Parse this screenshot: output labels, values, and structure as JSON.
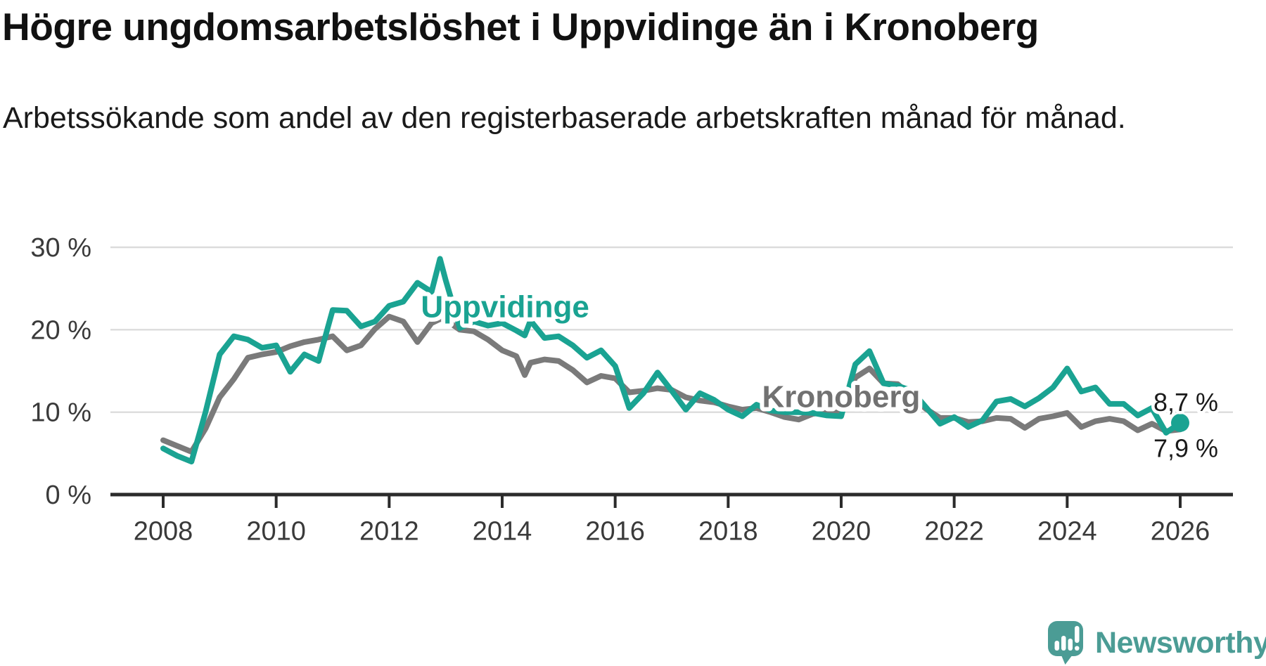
{
  "header": {
    "title": "Högre ungdomsarbetslöshet i Uppvidinge än i Kronoberg",
    "subtitle": "Arbetssökande som andel av den registerbaserade arbetskraften månad för månad."
  },
  "branding": {
    "logo_text": "Newsworthy",
    "logo_color": "#4B9C95"
  },
  "chart_data": {
    "type": "line",
    "title": "Högre ungdomsarbetslöshet i Uppvidinge än i Kronoberg",
    "subtitle": "Arbetssökande som andel av den registerbaserade arbetskraften månad för månad.",
    "xlabel": "",
    "ylabel": "",
    "grid": "horizontal-only",
    "legend_position": "inline-labels",
    "x_axis_range": [
      2007.05,
      2026.95
    ],
    "ylim": [
      0,
      34
    ],
    "x_ticks": [
      2008,
      2010,
      2012,
      2014,
      2016,
      2018,
      2020,
      2022,
      2024,
      2026
    ],
    "x_tick_labels": [
      "2008",
      "2010",
      "2012",
      "2014",
      "2016",
      "2018",
      "2020",
      "2022",
      "2024",
      "2026"
    ],
    "y_tick_values": [
      0,
      10,
      20,
      30
    ],
    "y_tick_labels": [
      "0 %",
      "10 %",
      "20 %",
      "30 %"
    ],
    "gridline_values": [
      10,
      20,
      30
    ],
    "colors": {
      "grid": "#DCDCDC",
      "axis": "#2B2B2B",
      "tick_text": "#3A3A3A",
      "value_label_text": "#1A1A1A"
    },
    "x": [
      2008.0,
      2008.25,
      2008.5,
      2008.75,
      2009.0,
      2009.25,
      2009.5,
      2009.75,
      2010.0,
      2010.25,
      2010.5,
      2010.75,
      2011.0,
      2011.25,
      2011.5,
      2011.75,
      2012.0,
      2012.25,
      2012.5,
      2012.75,
      2012.9,
      2013.0,
      2013.25,
      2013.5,
      2013.75,
      2014.0,
      2014.25,
      2014.4,
      2014.5,
      2014.75,
      2015.0,
      2015.25,
      2015.5,
      2015.75,
      2016.0,
      2016.25,
      2016.5,
      2016.75,
      2017.0,
      2017.25,
      2017.5,
      2017.75,
      2018.0,
      2018.25,
      2018.5,
      2018.75,
      2019.0,
      2019.25,
      2019.5,
      2019.75,
      2020.0,
      2020.25,
      2020.5,
      2020.75,
      2021.0,
      2021.25,
      2021.5,
      2021.75,
      2022.0,
      2022.25,
      2022.5,
      2022.75,
      2023.0,
      2023.25,
      2023.5,
      2023.75,
      2024.0,
      2024.25,
      2024.5,
      2024.75,
      2025.0,
      2025.25,
      2025.5,
      2025.75,
      2026.0
    ],
    "series": [
      {
        "name": "Uppvidinge",
        "color": "#1AA392",
        "end_value": 8.7,
        "end_label": "8,7 %",
        "values": [
          5.6,
          4.7,
          4.0,
          10.0,
          17.0,
          19.2,
          18.8,
          17.8,
          18.1,
          14.9,
          17.0,
          16.2,
          22.4,
          22.3,
          20.4,
          21.0,
          22.9,
          23.4,
          25.7,
          24.6,
          28.6,
          26.0,
          20.2,
          21.0,
          20.5,
          20.8,
          19.9,
          19.3,
          21.1,
          19.0,
          19.2,
          18.1,
          16.6,
          17.5,
          15.6,
          10.5,
          12.3,
          14.8,
          12.6,
          10.3,
          12.3,
          11.5,
          10.3,
          9.5,
          10.9,
          10.2,
          10.0,
          10.0,
          9.9,
          9.6,
          9.5,
          15.8,
          17.4,
          13.5,
          13.2,
          12.6,
          10.6,
          8.6,
          9.4,
          8.2,
          9.0,
          11.3,
          11.6,
          10.7,
          11.7,
          13.0,
          15.3,
          12.5,
          13.0,
          11.0,
          11.0,
          9.6,
          10.5,
          7.5,
          8.7
        ]
      },
      {
        "name": "Kronoberg",
        "color": "#7A7A7A",
        "end_value": 7.9,
        "end_label": "7,9 %",
        "values": [
          6.6,
          5.9,
          5.2,
          8.0,
          11.8,
          14.0,
          16.6,
          17.0,
          17.3,
          18.0,
          18.5,
          18.8,
          19.2,
          17.5,
          18.1,
          20.1,
          21.6,
          21.0,
          18.5,
          20.8,
          21.3,
          21.2,
          20.0,
          19.8,
          18.8,
          17.5,
          16.8,
          14.5,
          16.0,
          16.4,
          16.2,
          15.1,
          13.6,
          14.4,
          14.1,
          12.4,
          12.6,
          12.9,
          12.7,
          11.8,
          11.4,
          11.2,
          10.7,
          10.3,
          10.5,
          10.0,
          9.4,
          9.1,
          9.8,
          10.0,
          10.0,
          14.2,
          15.3,
          13.5,
          13.4,
          11.9,
          10.4,
          9.3,
          9.3,
          8.8,
          8.9,
          9.3,
          9.2,
          8.1,
          9.2,
          9.5,
          9.9,
          8.2,
          8.9,
          9.2,
          8.9,
          7.8,
          8.6,
          7.7,
          7.9
        ]
      }
    ],
    "annotations": [
      {
        "text": "Uppvidinge",
        "x": 2012.56,
        "y": 22.8,
        "color": "#1AA392"
      },
      {
        "text": "Kronoberg",
        "x": 2018.6,
        "y": 11.9,
        "color": "#717171"
      }
    ]
  }
}
